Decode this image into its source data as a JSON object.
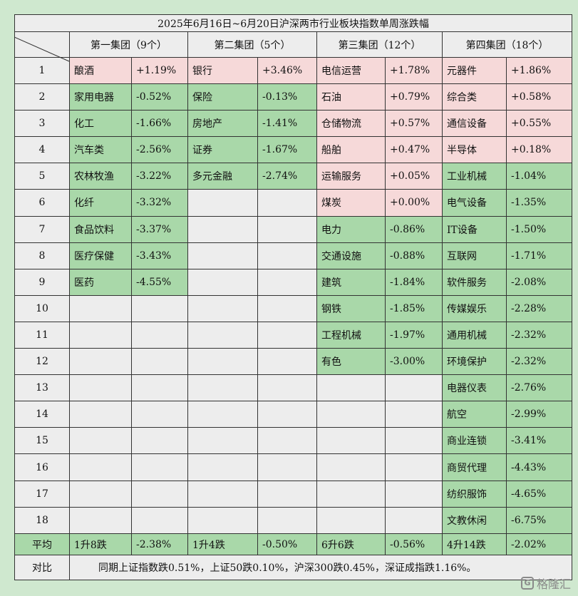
{
  "title": "2025年6月16日~6月20日沪深两市行业板块指数单周涨跌幅",
  "groups": [
    "第一集团（9个）",
    "第二集团（5个）",
    "第三集团（12个）",
    "第四集团（18个）"
  ],
  "colors": {
    "up": "#f6d9d9",
    "down": "#a9d8a9",
    "empty": "#ededed",
    "background": "#cfe8cf"
  },
  "rows": [
    {
      "no": "1",
      "cells": [
        {
          "name": "酿酒",
          "pct": "+1.19%",
          "s": "up"
        },
        {
          "name": "银行",
          "pct": "+3.46%",
          "s": "up"
        },
        {
          "name": "电信运营",
          "pct": "+1.78%",
          "s": "up"
        },
        {
          "name": "元器件",
          "pct": "+1.86%",
          "s": "up"
        }
      ]
    },
    {
      "no": "2",
      "cells": [
        {
          "name": "家用电器",
          "pct": "-0.52%",
          "s": "down"
        },
        {
          "name": "保险",
          "pct": "-0.13%",
          "s": "down"
        },
        {
          "name": "石油",
          "pct": "+0.79%",
          "s": "up"
        },
        {
          "name": "综合类",
          "pct": "+0.58%",
          "s": "up"
        }
      ]
    },
    {
      "no": "3",
      "cells": [
        {
          "name": "化工",
          "pct": "-1.66%",
          "s": "down"
        },
        {
          "name": "房地产",
          "pct": "-1.41%",
          "s": "down"
        },
        {
          "name": "仓储物流",
          "pct": "+0.57%",
          "s": "up"
        },
        {
          "name": "通信设备",
          "pct": "+0.55%",
          "s": "up"
        }
      ]
    },
    {
      "no": "4",
      "cells": [
        {
          "name": "汽车类",
          "pct": "-2.56%",
          "s": "down"
        },
        {
          "name": "证券",
          "pct": "-1.67%",
          "s": "down"
        },
        {
          "name": "船舶",
          "pct": "+0.47%",
          "s": "up"
        },
        {
          "name": "半导体",
          "pct": "+0.18%",
          "s": "up"
        }
      ]
    },
    {
      "no": "5",
      "cells": [
        {
          "name": "农林牧渔",
          "pct": "-3.22%",
          "s": "down"
        },
        {
          "name": "多元金融",
          "pct": "-2.74%",
          "s": "down"
        },
        {
          "name": "运输服务",
          "pct": "+0.05%",
          "s": "up"
        },
        {
          "name": "工业机械",
          "pct": "-1.04%",
          "s": "down"
        }
      ]
    },
    {
      "no": "6",
      "cells": [
        {
          "name": "化纤",
          "pct": "-3.32%",
          "s": "down"
        },
        null,
        {
          "name": "煤炭",
          "pct": "+0.00%",
          "s": "up"
        },
        {
          "name": "电气设备",
          "pct": "-1.35%",
          "s": "down"
        }
      ]
    },
    {
      "no": "7",
      "cells": [
        {
          "name": "食品饮料",
          "pct": "-3.37%",
          "s": "down"
        },
        null,
        {
          "name": "电力",
          "pct": "-0.86%",
          "s": "down"
        },
        {
          "name": "IT设备",
          "pct": "-1.50%",
          "s": "down"
        }
      ]
    },
    {
      "no": "8",
      "cells": [
        {
          "name": "医疗保健",
          "pct": "-3.43%",
          "s": "down"
        },
        null,
        {
          "name": "交通设施",
          "pct": "-0.88%",
          "s": "down"
        },
        {
          "name": "互联网",
          "pct": "-1.71%",
          "s": "down"
        }
      ]
    },
    {
      "no": "9",
      "cells": [
        {
          "name": "医药",
          "pct": "-4.55%",
          "s": "down"
        },
        null,
        {
          "name": "建筑",
          "pct": "-1.84%",
          "s": "down"
        },
        {
          "name": "软件服务",
          "pct": "-2.08%",
          "s": "down"
        }
      ]
    },
    {
      "no": "10",
      "cells": [
        null,
        null,
        {
          "name": "钢铁",
          "pct": "-1.85%",
          "s": "down"
        },
        {
          "name": "传媒娱乐",
          "pct": "-2.28%",
          "s": "down"
        }
      ]
    },
    {
      "no": "11",
      "cells": [
        null,
        null,
        {
          "name": "工程机械",
          "pct": "-1.97%",
          "s": "down"
        },
        {
          "name": "通用机械",
          "pct": "-2.32%",
          "s": "down"
        }
      ]
    },
    {
      "no": "12",
      "cells": [
        null,
        null,
        {
          "name": "有色",
          "pct": "-3.00%",
          "s": "down"
        },
        {
          "name": "环境保护",
          "pct": "-2.32%",
          "s": "down"
        }
      ]
    },
    {
      "no": "13",
      "cells": [
        null,
        null,
        null,
        {
          "name": "电器仪表",
          "pct": "-2.76%",
          "s": "down"
        }
      ]
    },
    {
      "no": "14",
      "cells": [
        null,
        null,
        null,
        {
          "name": "航空",
          "pct": "-2.99%",
          "s": "down"
        }
      ]
    },
    {
      "no": "15",
      "cells": [
        null,
        null,
        null,
        {
          "name": "商业连锁",
          "pct": "-3.41%",
          "s": "down"
        }
      ]
    },
    {
      "no": "16",
      "cells": [
        null,
        null,
        null,
        {
          "name": "商贸代理",
          "pct": "-4.43%",
          "s": "down"
        }
      ]
    },
    {
      "no": "17",
      "cells": [
        null,
        null,
        null,
        {
          "name": "纺织服饰",
          "pct": "-4.65%",
          "s": "down"
        }
      ]
    },
    {
      "no": "18",
      "cells": [
        null,
        null,
        null,
        {
          "name": "文教休闲",
          "pct": "-6.75%",
          "s": "down"
        }
      ]
    }
  ],
  "average": {
    "label": "平均",
    "cells": [
      {
        "name": "1升8跌",
        "pct": "-2.38%"
      },
      {
        "name": "1升4跌",
        "pct": "-0.50%"
      },
      {
        "name": "6升6跌",
        "pct": "-0.56%"
      },
      {
        "name": "4升14跌",
        "pct": "-2.02%"
      }
    ]
  },
  "comparison": {
    "label": "对比",
    "text": "同期上证指数跌0.51%，上证50跌0.10%，沪深300跌0.45%，深证成指跌1.16%。"
  },
  "watermark": {
    "mark": "G",
    "text": "格隆汇"
  }
}
